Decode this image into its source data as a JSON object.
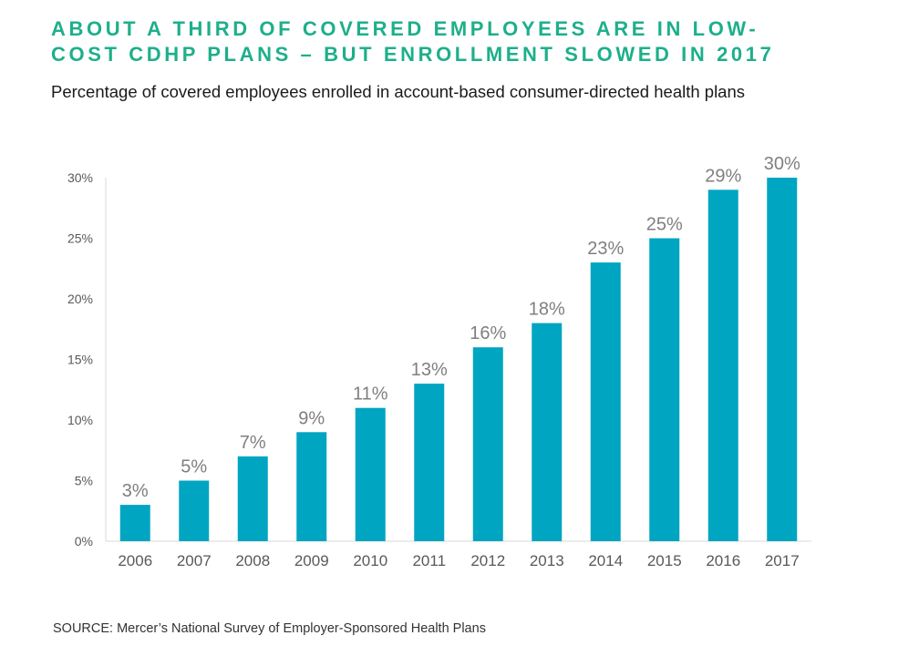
{
  "title_lines": [
    "ABOUT A THIRD OF COVERED EMPLOYEES ARE IN LOW-",
    "COST CDHP PLANS – BUT ENROLLMENT SLOWED IN 2017"
  ],
  "subtitle": "Percentage of covered employees enrolled in account-based consumer-directed health plans",
  "source": "SOURCE:  Mercer’s National Survey of Employer-Sponsored Health Plans",
  "colors": {
    "title": "#1DAF8B",
    "bar": "#00A5C2",
    "data_label": "#7F7F7F",
    "tick_label": "#595959",
    "axis": "#D9D9D9"
  },
  "chart_data": {
    "type": "bar",
    "categories": [
      "2006",
      "2007",
      "2008",
      "2009",
      "2010",
      "2011",
      "2012",
      "2013",
      "2014",
      "2015",
      "2016",
      "2017"
    ],
    "values": [
      3,
      5,
      7,
      9,
      11,
      13,
      16,
      18,
      23,
      25,
      29,
      30
    ],
    "data_labels": [
      "3%",
      "5%",
      "7%",
      "9%",
      "11%",
      "13%",
      "16%",
      "18%",
      "23%",
      "25%",
      "29%",
      "30%"
    ],
    "yticks": [
      0,
      5,
      10,
      15,
      20,
      25,
      30
    ],
    "ytick_labels": [
      "0%",
      "5%",
      "10%",
      "15%",
      "20%",
      "25%",
      "30%"
    ],
    "ylim": [
      0,
      30
    ],
    "grid": false,
    "legend": "none"
  }
}
